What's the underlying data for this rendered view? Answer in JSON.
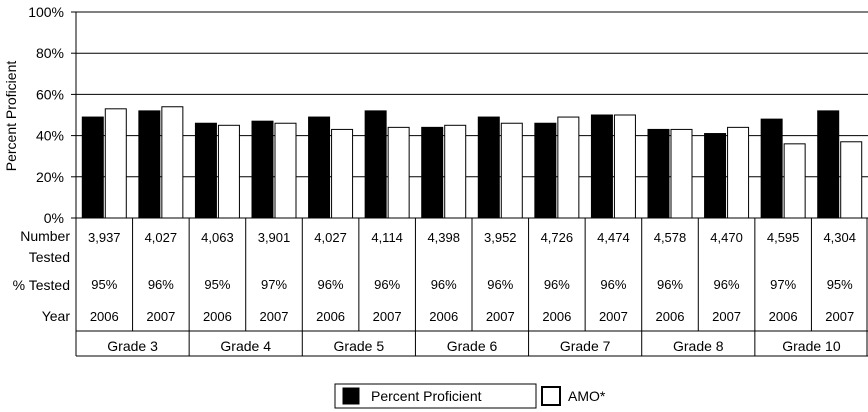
{
  "chart_data": {
    "type": "bar",
    "ylabel": "Percent Proficient",
    "ylim": [
      0,
      100
    ],
    "yticks": [
      "0%",
      "20%",
      "40%",
      "60%",
      "80%",
      "100%"
    ],
    "grid": true,
    "categories": [
      {
        "grade": "Grade 3",
        "year": "2006"
      },
      {
        "grade": "Grade 3",
        "year": "2007"
      },
      {
        "grade": "Grade 4",
        "year": "2006"
      },
      {
        "grade": "Grade 4",
        "year": "2007"
      },
      {
        "grade": "Grade 5",
        "year": "2006"
      },
      {
        "grade": "Grade 5",
        "year": "2007"
      },
      {
        "grade": "Grade 6",
        "year": "2006"
      },
      {
        "grade": "Grade 6",
        "year": "2007"
      },
      {
        "grade": "Grade 7",
        "year": "2006"
      },
      {
        "grade": "Grade 7",
        "year": "2007"
      },
      {
        "grade": "Grade 8",
        "year": "2006"
      },
      {
        "grade": "Grade 8",
        "year": "2007"
      },
      {
        "grade": "Grade 10",
        "year": "2006"
      },
      {
        "grade": "Grade 10",
        "year": "2007"
      }
    ],
    "series": [
      {
        "name": "Percent Proficient",
        "color": "#000000",
        "values": [
          49,
          52,
          46,
          47,
          49,
          52,
          44,
          49,
          46,
          50,
          43,
          41,
          48,
          52
        ]
      },
      {
        "name": "AMO*",
        "color": "#ffffff",
        "values": [
          53,
          54,
          45,
          46,
          43,
          44,
          45,
          46,
          49,
          50,
          43,
          44,
          36,
          37
        ]
      }
    ],
    "table": {
      "row_labels": {
        "number_tested_line1": "Number",
        "number_tested_line2": "Tested",
        "pct_tested": "% Tested",
        "year": "Year"
      },
      "number_tested": [
        "3,937",
        "4,027",
        "4,063",
        "3,901",
        "4,027",
        "4,114",
        "4,398",
        "3,952",
        "4,726",
        "4,474",
        "4,578",
        "4,470",
        "4,595",
        "4,304"
      ],
      "pct_tested": [
        "95%",
        "96%",
        "95%",
        "97%",
        "96%",
        "96%",
        "96%",
        "96%",
        "96%",
        "96%",
        "96%",
        "96%",
        "97%",
        "95%"
      ],
      "years": [
        "2006",
        "2007",
        "2006",
        "2007",
        "2006",
        "2007",
        "2006",
        "2007",
        "2006",
        "2007",
        "2006",
        "2007",
        "2006",
        "2007"
      ],
      "grades": [
        "Grade 3",
        "Grade 4",
        "Grade 5",
        "Grade 6",
        "Grade 7",
        "Grade 8",
        "Grade 10"
      ]
    },
    "legend": {
      "position": "bottom-center",
      "items": [
        "Percent Proficient",
        "AMO*"
      ]
    }
  }
}
